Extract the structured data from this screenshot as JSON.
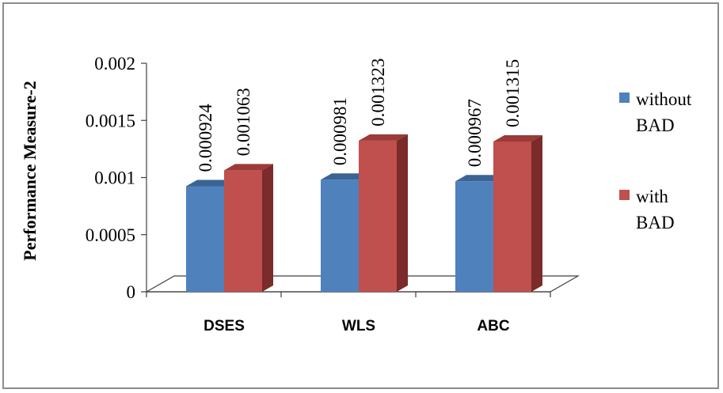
{
  "chart_data": {
    "type": "bar",
    "title": "",
    "xlabel": "",
    "ylabel": "Performance Measure-2",
    "categories": [
      "DSES",
      "WLS",
      "ABC"
    ],
    "series": [
      {
        "name": "without BAD",
        "values": [
          0.000924,
          0.000981,
          0.000967
        ],
        "labels": [
          "0.000924",
          "0.000981",
          "0.000967"
        ]
      },
      {
        "name": "with BAD",
        "values": [
          0.001063,
          0.001323,
          0.001315
        ],
        "labels": [
          "0.001063",
          "0.001323",
          "0.001315"
        ]
      }
    ],
    "ylim": [
      0,
      0.002
    ],
    "yticks": [
      "0",
      "0.0005",
      "0.001",
      "0.0015",
      "0.002"
    ],
    "legend": {
      "placement": "right",
      "entries": [
        {
          "lines": [
            "without",
            "BAD"
          ]
        },
        {
          "lines": [
            "with",
            "BAD"
          ]
        }
      ]
    },
    "colors": {
      "without BAD": {
        "front": "#4f81bd",
        "top": "#3a6494",
        "side": "#2c4d74"
      },
      "with BAD": {
        "front": "#c0504d",
        "top": "#9c3a38",
        "side": "#7a2b2a"
      },
      "floor": "#ffffff",
      "floor_stroke": "#404040"
    },
    "grid": false,
    "style": "3d"
  }
}
